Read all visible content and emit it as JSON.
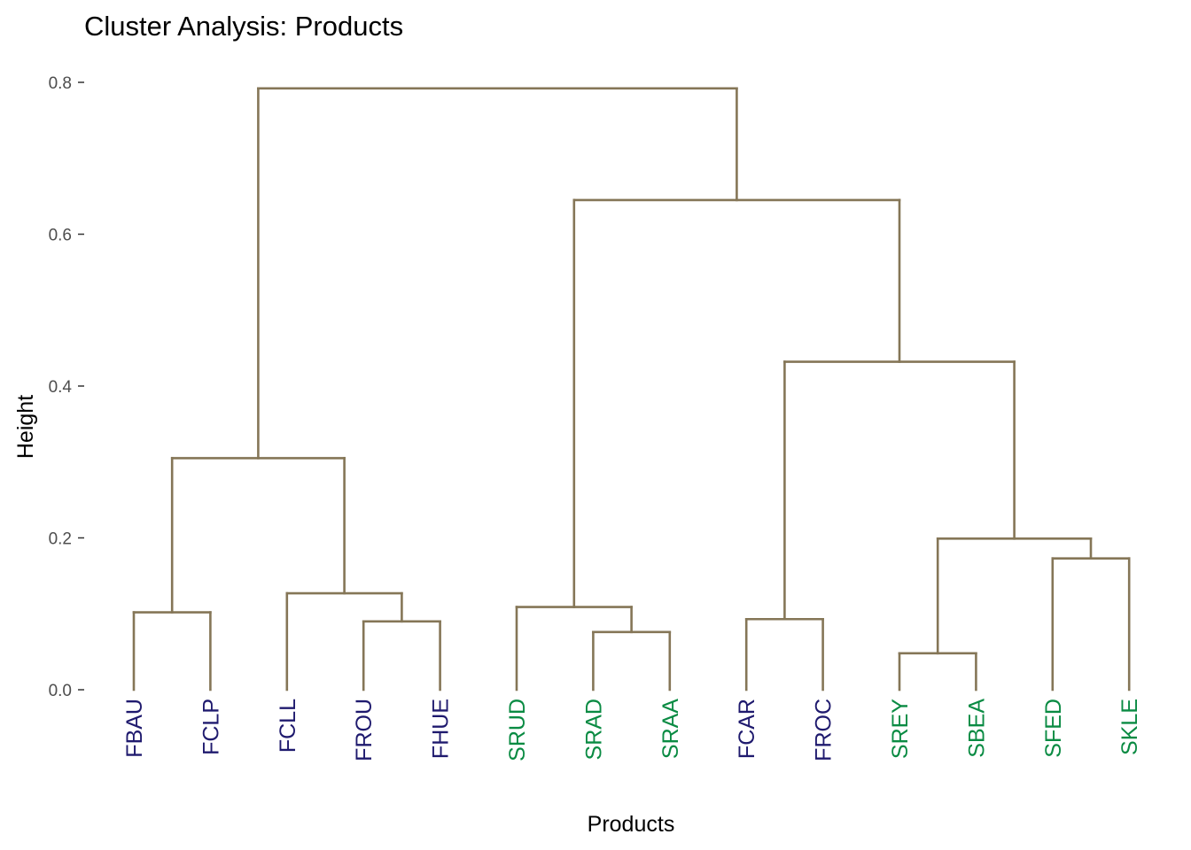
{
  "chart_data": {
    "type": "dendrogram",
    "title": "Cluster Analysis: Products",
    "xlabel": "Products",
    "ylabel": "Height",
    "ylim": [
      0,
      0.8
    ],
    "yticks": [
      "0.0",
      "0.2",
      "0.4",
      "0.6",
      "0.8"
    ],
    "grid": false,
    "branch_color": "#857657",
    "group_colors": {
      "F": "#1f1a6e",
      "S": "#0a8b43"
    },
    "leaves": [
      {
        "label": "FBAU",
        "group": "F"
      },
      {
        "label": "FCLP",
        "group": "F"
      },
      {
        "label": "FCLL",
        "group": "F"
      },
      {
        "label": "FROU",
        "group": "F"
      },
      {
        "label": "FHUE",
        "group": "F"
      },
      {
        "label": "SRUD",
        "group": "S"
      },
      {
        "label": "SRAD",
        "group": "S"
      },
      {
        "label": "SRAA",
        "group": "S"
      },
      {
        "label": "FCAR",
        "group": "F"
      },
      {
        "label": "FROC",
        "group": "F"
      },
      {
        "label": "SREY",
        "group": "S"
      },
      {
        "label": "SBEA",
        "group": "S"
      },
      {
        "label": "SFED",
        "group": "S"
      },
      {
        "label": "SKLE",
        "group": "S"
      }
    ],
    "merges": [
      {
        "left": "FBAU",
        "right": "FCLP",
        "height": 0.102,
        "id": "m1"
      },
      {
        "left": "FROU",
        "right": "FHUE",
        "height": 0.09,
        "id": "m2"
      },
      {
        "left": "FCLL",
        "right": "m2",
        "height": 0.127,
        "id": "m3"
      },
      {
        "left": "m1",
        "right": "m3",
        "height": 0.305,
        "id": "m4"
      },
      {
        "left": "SRAD",
        "right": "SRAA",
        "height": 0.076,
        "id": "m5"
      },
      {
        "left": "SRUD",
        "right": "m5",
        "height": 0.109,
        "id": "m6"
      },
      {
        "left": "FCAR",
        "right": "FROC",
        "height": 0.093,
        "id": "m7"
      },
      {
        "left": "SREY",
        "right": "SBEA",
        "height": 0.048,
        "id": "m8"
      },
      {
        "left": "SFED",
        "right": "SKLE",
        "height": 0.173,
        "id": "m9"
      },
      {
        "left": "m8",
        "right": "m9",
        "height": 0.199,
        "id": "m10"
      },
      {
        "left": "m7",
        "right": "m10",
        "height": 0.432,
        "id": "m11"
      },
      {
        "left": "m6",
        "right": "m11",
        "height": 0.645,
        "id": "m12"
      },
      {
        "left": "m4",
        "right": "m12",
        "height": 0.792,
        "id": "m13"
      }
    ]
  }
}
